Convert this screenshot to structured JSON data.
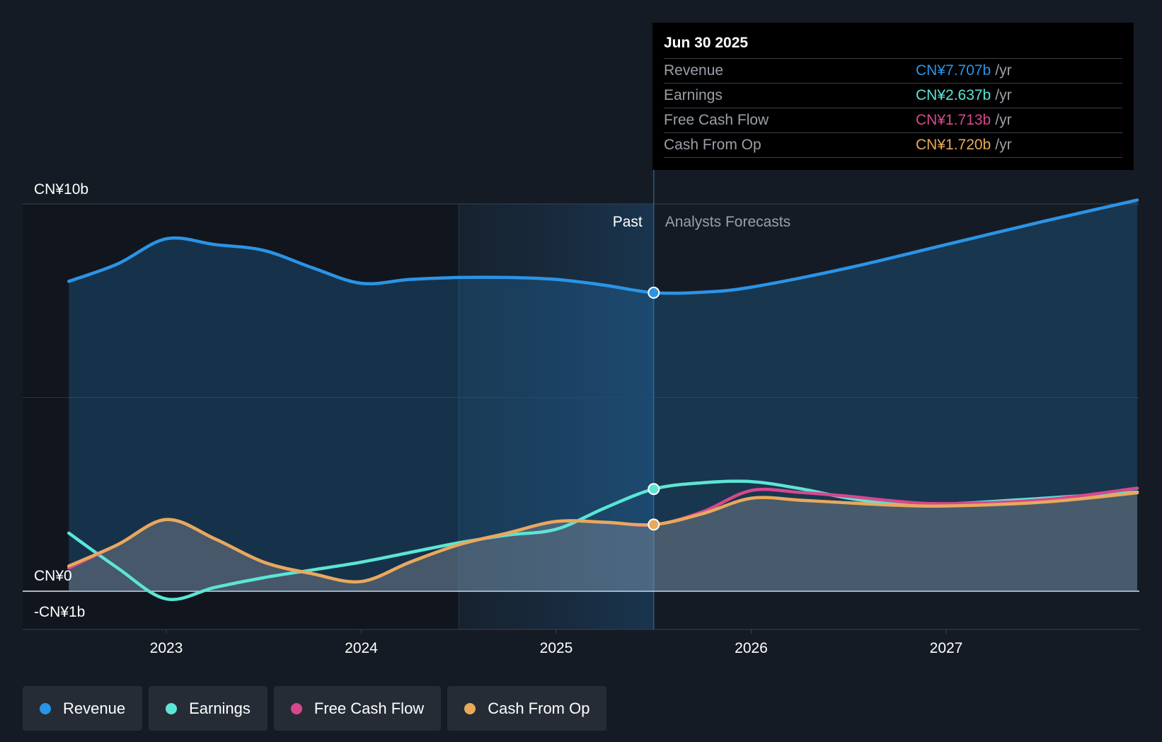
{
  "chart_data": {
    "type": "line",
    "title": "",
    "y_unit_label": "CN¥",
    "ylim": [
      -1,
      10
    ],
    "y_ticks": [
      {
        "value": 10,
        "label": "CN¥10b"
      },
      {
        "value": 0,
        "label": "CN¥0"
      },
      {
        "value": -1,
        "label": "-CN¥1b"
      }
    ],
    "x_range": [
      2022.25,
      2027.98
    ],
    "x_ticks": [
      {
        "value": 2023.0,
        "label": "2023"
      },
      {
        "value": 2024.0,
        "label": "2024"
      },
      {
        "value": 2025.0,
        "label": "2025"
      },
      {
        "value": 2026.0,
        "label": "2026"
      },
      {
        "value": 2027.0,
        "label": "2027"
      }
    ],
    "past_label": "Past",
    "forecast_label": "Analysts Forecasts",
    "past_end_x": 2025.5,
    "highlight_start_x": 2024.5,
    "series": [
      {
        "name": "Revenue",
        "color": "#2b94e6",
        "fill": true,
        "points": [
          [
            2022.5,
            8.0
          ],
          [
            2022.75,
            8.45
          ],
          [
            2023.0,
            9.1
          ],
          [
            2023.25,
            8.95
          ],
          [
            2023.5,
            8.8
          ],
          [
            2023.75,
            8.35
          ],
          [
            2024.0,
            7.95
          ],
          [
            2024.25,
            8.05
          ],
          [
            2024.5,
            8.1
          ],
          [
            2024.75,
            8.1
          ],
          [
            2025.0,
            8.05
          ],
          [
            2025.25,
            7.9
          ],
          [
            2025.5,
            7.707
          ],
          [
            2025.75,
            7.72
          ],
          [
            2026.0,
            7.85
          ],
          [
            2026.5,
            8.35
          ],
          [
            2027.0,
            8.95
          ],
          [
            2027.5,
            9.55
          ],
          [
            2027.98,
            10.1
          ]
        ]
      },
      {
        "name": "Earnings",
        "color": "#5ce5d5",
        "fill": false,
        "points": [
          [
            2022.5,
            1.5
          ],
          [
            2022.75,
            0.6
          ],
          [
            2023.0,
            -0.2
          ],
          [
            2023.25,
            0.1
          ],
          [
            2023.5,
            0.35
          ],
          [
            2023.75,
            0.55
          ],
          [
            2024.0,
            0.75
          ],
          [
            2024.25,
            1.0
          ],
          [
            2024.5,
            1.25
          ],
          [
            2024.75,
            1.45
          ],
          [
            2025.0,
            1.6
          ],
          [
            2025.25,
            2.15
          ],
          [
            2025.5,
            2.637
          ],
          [
            2025.75,
            2.8
          ],
          [
            2026.0,
            2.83
          ],
          [
            2026.25,
            2.65
          ],
          [
            2026.5,
            2.4
          ],
          [
            2026.75,
            2.25
          ],
          [
            2027.0,
            2.25
          ],
          [
            2027.5,
            2.4
          ],
          [
            2027.98,
            2.56
          ]
        ]
      },
      {
        "name": "Free Cash Flow",
        "color": "#d6488e",
        "fill": false,
        "points": [
          [
            2022.5,
            0.6
          ],
          [
            2022.75,
            1.2
          ],
          [
            2023.0,
            1.85
          ],
          [
            2023.25,
            1.35
          ],
          [
            2023.5,
            0.75
          ],
          [
            2023.75,
            0.45
          ],
          [
            2024.0,
            0.25
          ],
          [
            2024.25,
            0.75
          ],
          [
            2024.5,
            1.2
          ],
          [
            2024.75,
            1.5
          ],
          [
            2025.0,
            1.8
          ],
          [
            2025.25,
            1.78
          ],
          [
            2025.5,
            1.713
          ],
          [
            2025.75,
            2.05
          ],
          [
            2026.0,
            2.6
          ],
          [
            2026.25,
            2.55
          ],
          [
            2026.5,
            2.45
          ],
          [
            2026.75,
            2.32
          ],
          [
            2027.0,
            2.26
          ],
          [
            2027.5,
            2.36
          ],
          [
            2027.98,
            2.66
          ]
        ]
      },
      {
        "name": "Cash From Op",
        "color": "#e8a95b",
        "fill": true,
        "points": [
          [
            2022.5,
            0.65
          ],
          [
            2022.75,
            1.2
          ],
          [
            2023.0,
            1.85
          ],
          [
            2023.25,
            1.35
          ],
          [
            2023.5,
            0.75
          ],
          [
            2023.75,
            0.45
          ],
          [
            2024.0,
            0.25
          ],
          [
            2024.25,
            0.75
          ],
          [
            2024.5,
            1.2
          ],
          [
            2024.75,
            1.5
          ],
          [
            2025.0,
            1.8
          ],
          [
            2025.25,
            1.78
          ],
          [
            2025.5,
            1.72
          ],
          [
            2025.75,
            2.0
          ],
          [
            2026.0,
            2.4
          ],
          [
            2026.25,
            2.35
          ],
          [
            2026.5,
            2.28
          ],
          [
            2026.75,
            2.22
          ],
          [
            2027.0,
            2.2
          ],
          [
            2027.5,
            2.3
          ],
          [
            2027.98,
            2.54
          ]
        ]
      }
    ],
    "markers": [
      {
        "series": "Revenue",
        "x": 2025.5,
        "y": 7.707
      },
      {
        "series": "Earnings",
        "x": 2025.5,
        "y": 2.637
      },
      {
        "series": "Cash From Op",
        "x": 2025.5,
        "y": 1.72
      }
    ]
  },
  "tooltip": {
    "date": "Jun 30 2025",
    "unit": "/yr",
    "rows": [
      {
        "label": "Revenue",
        "value": "CN¥7.707b",
        "color": "#2b94e6"
      },
      {
        "label": "Earnings",
        "value": "CN¥2.637b",
        "color": "#5ce5d5"
      },
      {
        "label": "Free Cash Flow",
        "value": "CN¥1.713b",
        "color": "#d6488e"
      },
      {
        "label": "Cash From Op",
        "value": "CN¥1.720b",
        "color": "#e8a95b"
      }
    ]
  },
  "legend": [
    {
      "label": "Revenue",
      "color": "#2b94e6"
    },
    {
      "label": "Earnings",
      "color": "#5ce5d5"
    },
    {
      "label": "Free Cash Flow",
      "color": "#d6488e"
    },
    {
      "label": "Cash From Op",
      "color": "#e8a95b"
    }
  ]
}
